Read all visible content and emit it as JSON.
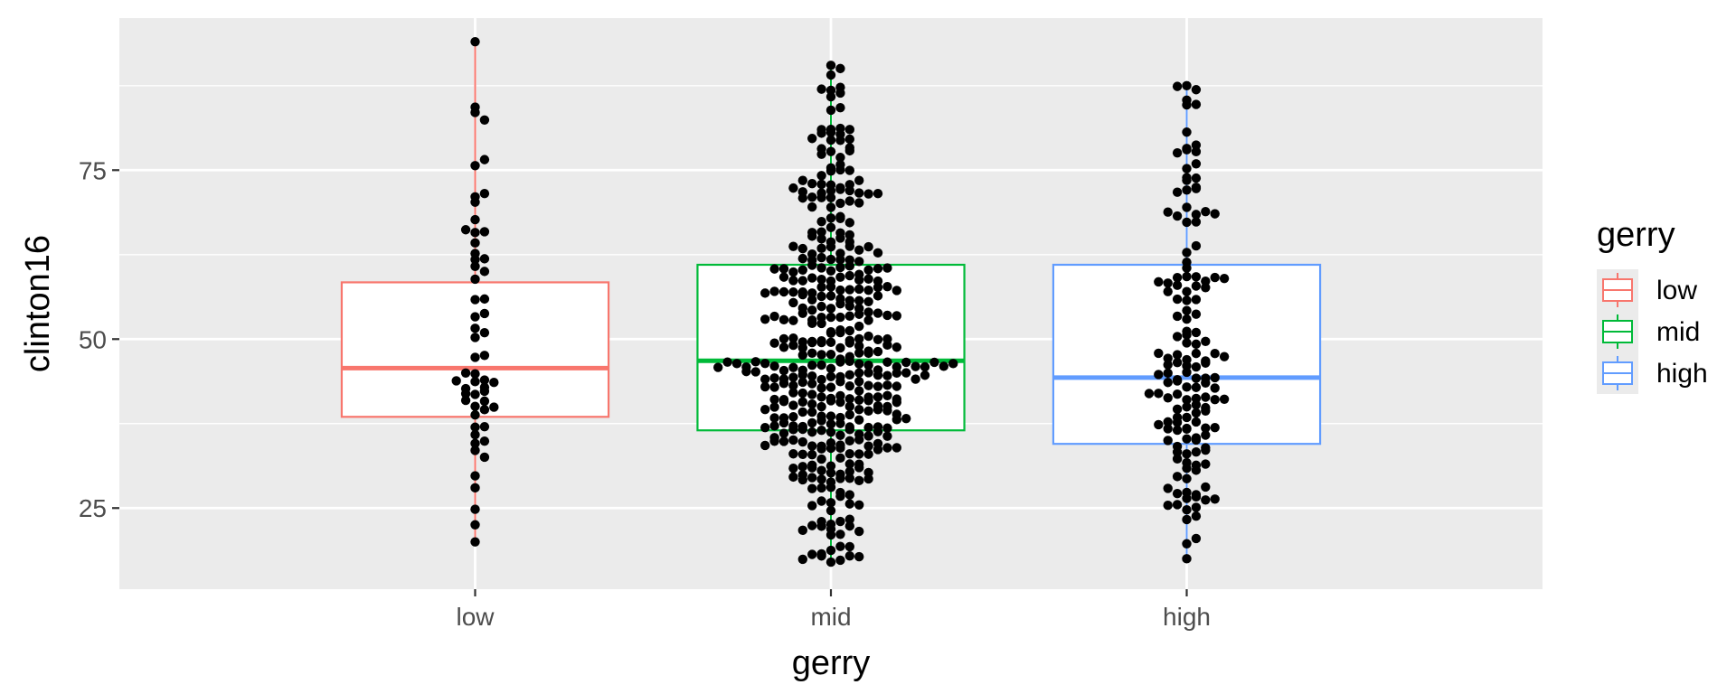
{
  "chart_data": {
    "type": "boxplot",
    "xlabel": "gerry",
    "ylabel": "clinton16",
    "ylim": [
      13.0,
      97.5
    ],
    "yticks": [
      25,
      50,
      75
    ],
    "grid": true,
    "legend": {
      "title": "gerry",
      "position": "right",
      "entries": [
        "low",
        "mid",
        "high"
      ]
    },
    "categories": [
      {
        "name": "low",
        "color": "#F8766D",
        "box": {
          "min": 20,
          "q1": 38.5,
          "median": 45.7,
          "q3": 58.4,
          "max": 94
        },
        "points_seed": 101,
        "points_count": 58
      },
      {
        "name": "mid",
        "color": "#00BA38",
        "box": {
          "min": 17,
          "q1": 36.5,
          "median": 46.8,
          "q3": 61.0,
          "max": 90.5
        },
        "points_seed": 202,
        "points_count": 420
      },
      {
        "name": "high",
        "color": "#619CFF",
        "box": {
          "min": 17.5,
          "q1": 34.5,
          "median": 44.3,
          "q3": 61.0,
          "max": 87.5
        },
        "points_seed": 303,
        "points_count": 150
      }
    ]
  }
}
